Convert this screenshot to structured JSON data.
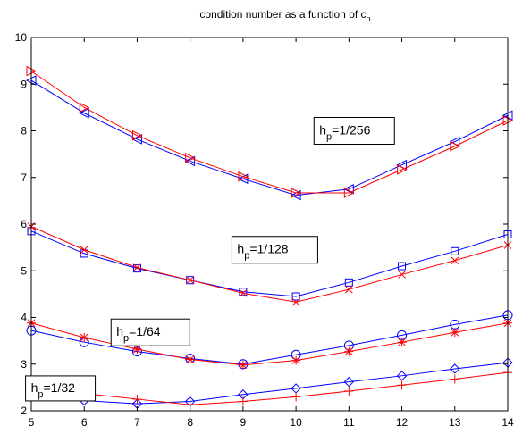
{
  "chart_data": {
    "type": "line",
    "title": {
      "main": "condition number as a function of c",
      "subscript": "p"
    },
    "xlim": [
      5,
      14
    ],
    "ylim": [
      2,
      10
    ],
    "x_ticks": [
      "5",
      "6",
      "7",
      "8",
      "9",
      "10",
      "11",
      "12",
      "13",
      "14"
    ],
    "y_ticks": [
      "2",
      "3",
      "4",
      "5",
      "6",
      "7",
      "8",
      "9",
      "10"
    ],
    "grid": false,
    "x": [
      5,
      6,
      7,
      8,
      9,
      10,
      11,
      12,
      13,
      14
    ],
    "series": [
      {
        "group": "1/256",
        "color": "#0000ff",
        "marker": "triangle-left",
        "values": [
          9.08,
          8.38,
          7.82,
          7.35,
          6.97,
          6.62,
          6.75,
          7.27,
          7.77,
          8.33
        ]
      },
      {
        "group": "1/256",
        "color": "#ff0000",
        "marker": "triangle-right",
        "values": [
          9.28,
          8.5,
          7.9,
          7.42,
          7.02,
          6.67,
          6.67,
          7.17,
          7.67,
          8.22
        ]
      },
      {
        "group": "1/128",
        "color": "#0000ff",
        "marker": "square",
        "values": [
          5.85,
          5.37,
          5.05,
          4.8,
          4.55,
          4.45,
          4.75,
          5.1,
          5.42,
          5.78
        ]
      },
      {
        "group": "1/128",
        "color": "#ff0000",
        "marker": "x",
        "values": [
          5.95,
          5.45,
          5.07,
          4.8,
          4.52,
          4.33,
          4.6,
          4.92,
          5.22,
          5.55
        ]
      },
      {
        "group": "1/64",
        "color": "#0000ff",
        "marker": "circle",
        "values": [
          3.72,
          3.47,
          3.27,
          3.12,
          3.0,
          3.2,
          3.4,
          3.62,
          3.85,
          4.05
        ]
      },
      {
        "group": "1/64",
        "color": "#ff0000",
        "marker": "asterisk",
        "values": [
          3.88,
          3.57,
          3.32,
          3.1,
          2.98,
          3.08,
          3.27,
          3.47,
          3.68,
          3.88
        ]
      },
      {
        "group": "1/32",
        "color": "#0000ff",
        "marker": "diamond",
        "values": [
          2.32,
          2.22,
          2.15,
          2.2,
          2.35,
          2.48,
          2.62,
          2.75,
          2.9,
          3.03
        ]
      },
      {
        "group": "1/32",
        "color": "#ff0000",
        "marker": "plus",
        "values": [
          2.57,
          2.37,
          2.25,
          2.13,
          2.2,
          2.3,
          2.42,
          2.55,
          2.68,
          2.82
        ]
      }
    ],
    "annotations": [
      {
        "prefix": "h",
        "sub": "p",
        "suffix": "=1/256"
      },
      {
        "prefix": "h",
        "sub": "p",
        "suffix": "=1/128"
      },
      {
        "prefix": "h",
        "sub": "p",
        "suffix": "=1/64"
      },
      {
        "prefix": "h",
        "sub": "p",
        "suffix": "=1/32"
      }
    ]
  }
}
